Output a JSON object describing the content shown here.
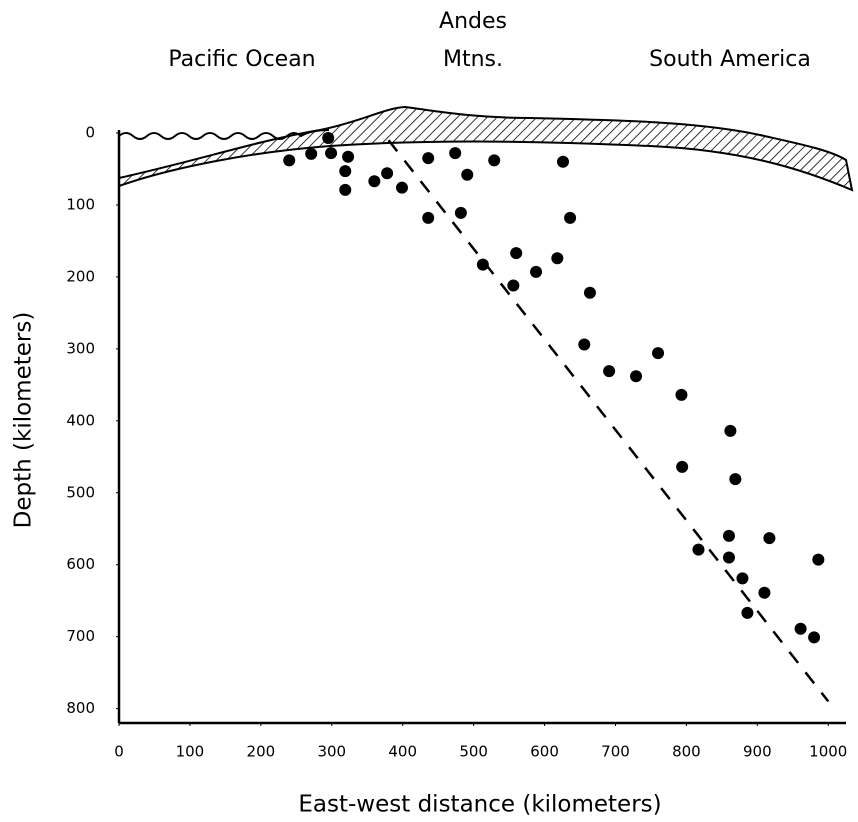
{
  "chart_data": {
    "type": "scatter",
    "x_label": "East-west distance (kilometers)",
    "y_label": "Depth (kilometers)",
    "annotations": [
      "Pacific Ocean",
      "Andes",
      "Mtns.",
      "South America"
    ],
    "xlim": [
      0,
      1025
    ],
    "ylim": [
      0,
      820
    ],
    "y_reversed": true,
    "xticks": [
      0,
      100,
      200,
      300,
      400,
      500,
      600,
      700,
      800,
      900,
      1000
    ],
    "yticks": [
      0,
      100,
      200,
      300,
      400,
      500,
      600,
      700,
      800
    ],
    "series": [
      {
        "color": "#000000",
        "x": [
          240,
          271,
          295,
          299,
          323,
          319,
          319,
          360,
          378,
          399,
          436,
          474,
          491,
          529,
          626,
          436,
          482,
          513,
          560,
          556,
          588,
          618,
          636,
          664,
          656,
          691,
          729,
          760,
          793,
          794,
          817,
          862,
          869,
          860,
          860,
          879,
          886,
          910,
          917,
          961,
          986,
          980
        ],
        "values": [
          38,
          29,
          7,
          28,
          33,
          53,
          79,
          67,
          56,
          76,
          35,
          28,
          58,
          38,
          40,
          118,
          111,
          183,
          167,
          212,
          193,
          174,
          118,
          222,
          294,
          331,
          338,
          306,
          364,
          464,
          579,
          414,
          481,
          560,
          590,
          619,
          667,
          639,
          563,
          689,
          593,
          701
        ]
      }
    ],
    "trend": {
      "x": [
        380,
        1000
      ],
      "values": [
        10,
        790
      ]
    }
  }
}
